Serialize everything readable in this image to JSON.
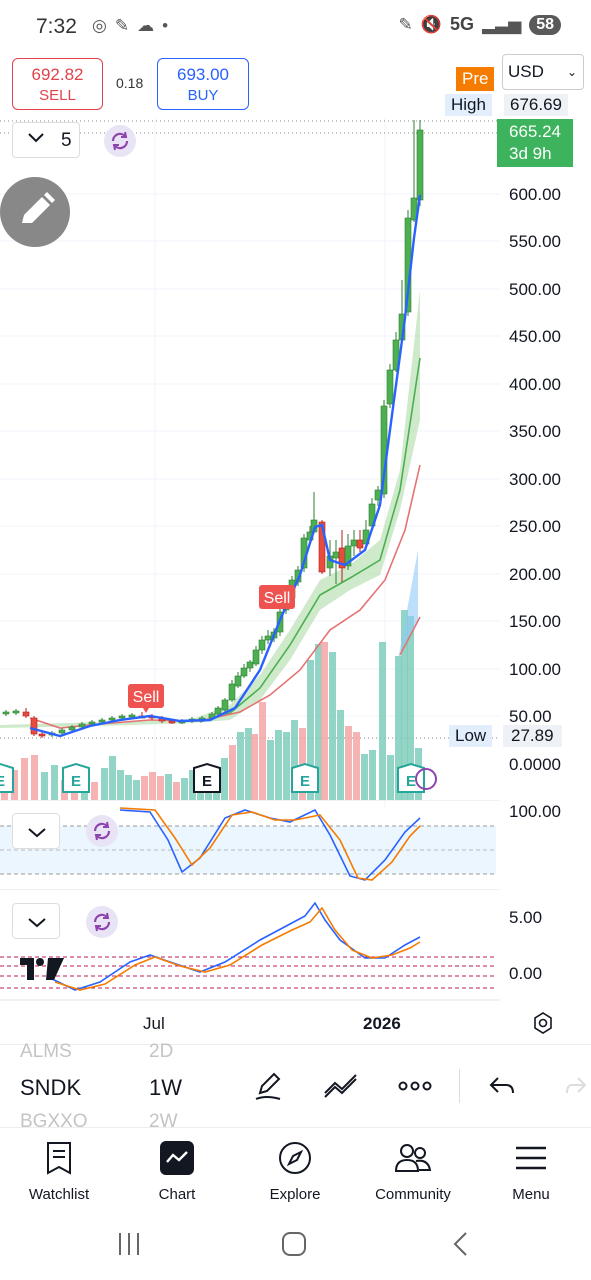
{
  "status_bar": {
    "time": "7:32",
    "network": "5G",
    "battery": "58"
  },
  "trade": {
    "sell_price": "692.82",
    "sell_label": "SELL",
    "spread": "0.18",
    "buy_price": "693.00",
    "buy_label": "BUY"
  },
  "session_badge": "Pre",
  "currency": {
    "selected": "USD"
  },
  "interval_button": {
    "value": "5"
  },
  "price_tags": {
    "high_label": "High",
    "high_value": "676.69",
    "last_price": "665.24",
    "countdown": "3d 9h",
    "low_label": "Low",
    "low_value": "27.89"
  },
  "price_axis": [
    "600.00",
    "550.00",
    "500.00",
    "450.00",
    "400.00",
    "350.00",
    "300.00",
    "250.00",
    "200.00",
    "150.00",
    "100.00",
    "50.00",
    "0.0000"
  ],
  "signals": [
    {
      "label": "Sell"
    },
    {
      "label": "Sell"
    }
  ],
  "earnings_marker": "E",
  "oscillator1_axis": [
    "100.00"
  ],
  "oscillator2_axis": [
    "5.00",
    "0.00"
  ],
  "time_axis": {
    "jul": "Jul",
    "year": "2026"
  },
  "symbols": {
    "prev": "ALMS",
    "prev_tf": "2D",
    "current": "SNDK",
    "current_tf": "1W",
    "next": "BGXXO",
    "next_tf": "2W"
  },
  "nav": [
    {
      "label": "Watchlist",
      "icon": "watchlist-icon"
    },
    {
      "label": "Chart",
      "icon": "chart-icon"
    },
    {
      "label": "Explore",
      "icon": "compass-icon"
    },
    {
      "label": "Community",
      "icon": "community-icon"
    },
    {
      "label": "Menu",
      "icon": "menu-icon"
    }
  ],
  "colors": {
    "up": "#4caf50",
    "down": "#e74c3c",
    "sell": "#e0434b",
    "buy": "#2962ff",
    "pre": "#f57c00",
    "last": "#3cb35c",
    "ma_blue": "#2962ff",
    "band_green": "#a8d8a0",
    "ma_red": "#e57373"
  }
}
